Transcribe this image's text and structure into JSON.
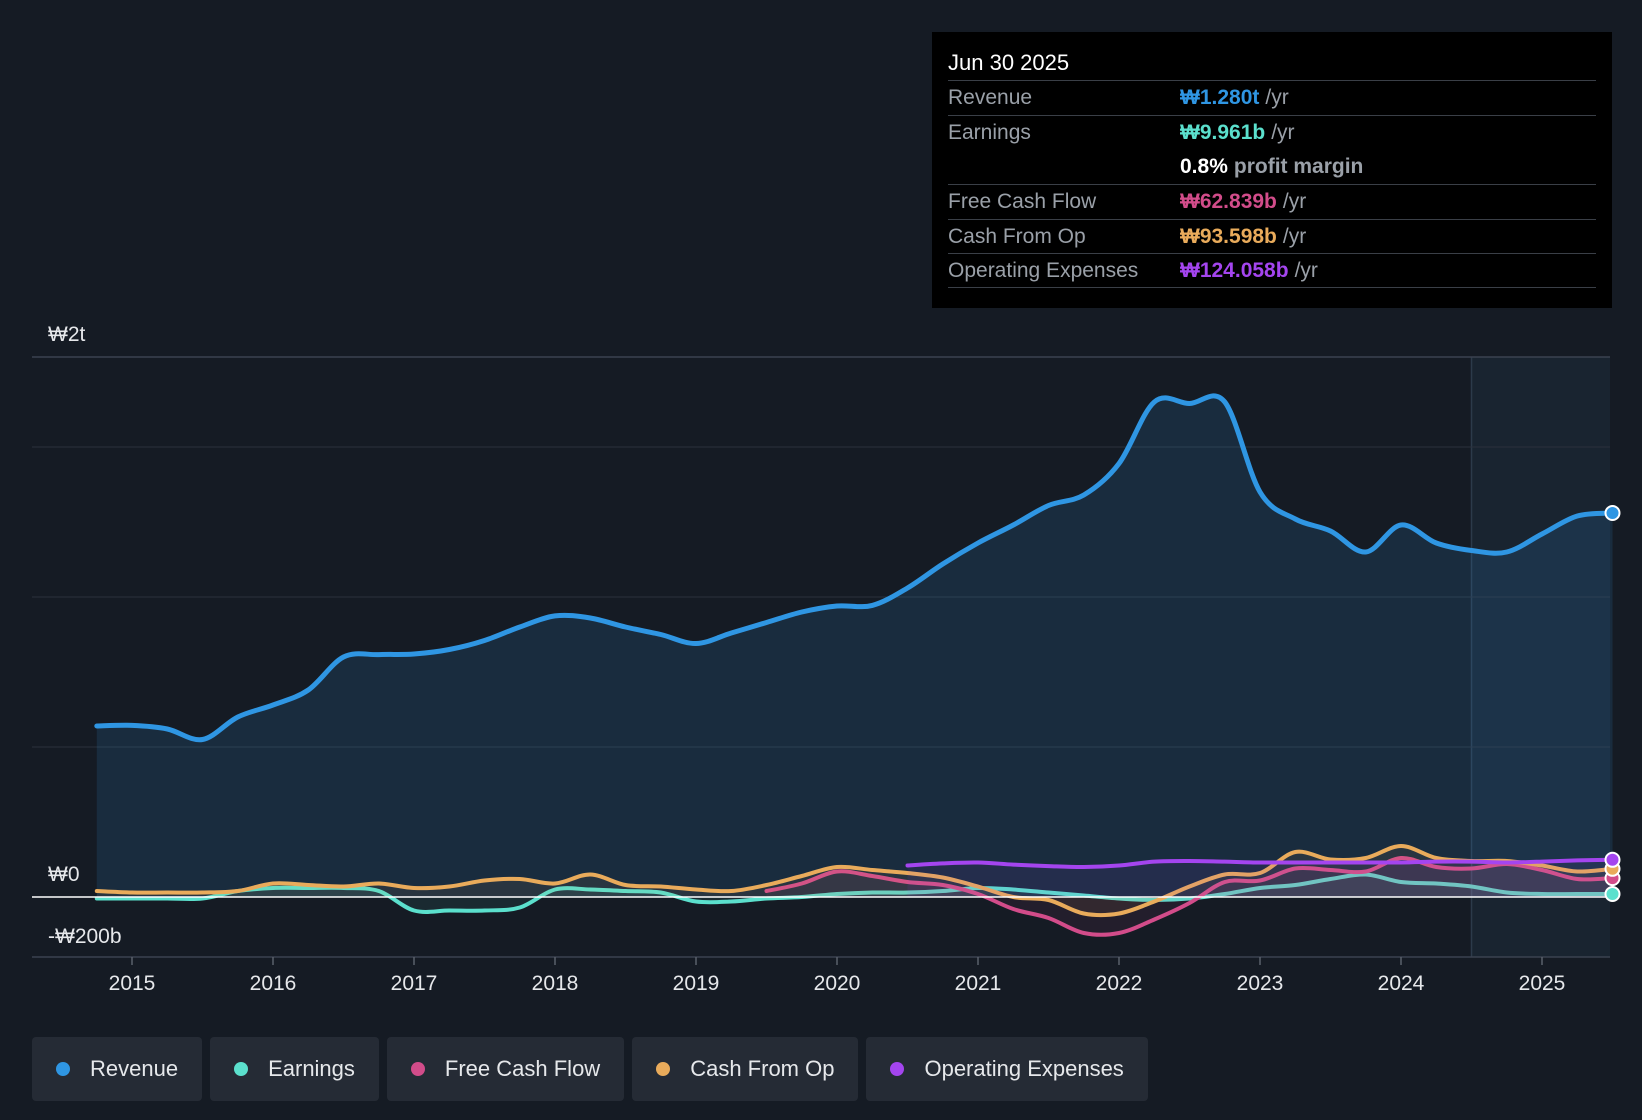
{
  "tooltip": {
    "date": "Jun 30 2025",
    "rows": [
      {
        "label": "Revenue",
        "value": "₩1.280t",
        "unit": "/yr",
        "color": "#2f96e3"
      },
      {
        "label": "Earnings",
        "value": "₩9.961b",
        "unit": "/yr",
        "color": "#5be0cd"
      },
      {
        "label": "Free Cash Flow",
        "value": "₩62.839b",
        "unit": "/yr",
        "color": "#d24c8a"
      },
      {
        "label": "Cash From Op",
        "value": "₩93.598b",
        "unit": "/yr",
        "color": "#e9ab5b"
      },
      {
        "label": "Operating Expenses",
        "value": "₩124.058b",
        "unit": "/yr",
        "color": "#a445ef"
      }
    ],
    "profit_margin_value": "0.8%",
    "profit_margin_label": "profit margin"
  },
  "legend": [
    {
      "label": "Revenue",
      "color": "#2f96e3"
    },
    {
      "label": "Earnings",
      "color": "#5be0cd"
    },
    {
      "label": "Free Cash Flow",
      "color": "#d24c8a"
    },
    {
      "label": "Cash From Op",
      "color": "#e9ab5b"
    },
    {
      "label": "Operating Expenses",
      "color": "#a445ef"
    }
  ],
  "chart_data": {
    "type": "area",
    "title": "",
    "xlabel": "",
    "ylabel": "",
    "ylim": [
      -200,
      1800
    ],
    "xlim": [
      2014.25,
      2025.5
    ],
    "y_tick_labels": [
      {
        "value": 1800,
        "label": "₩2t"
      },
      {
        "value": 0,
        "label": "₩0"
      },
      {
        "value": -200,
        "label": "-₩200b"
      }
    ],
    "gridlines": [
      1500,
      1000,
      500
    ],
    "x_ticks": [
      "2015",
      "2016",
      "2017",
      "2018",
      "2019",
      "2020",
      "2021",
      "2022",
      "2023",
      "2024",
      "2025"
    ],
    "forecast_start": 2024.5,
    "units": "KRW billions",
    "series": [
      {
        "name": "Revenue",
        "color": "#2f96e3",
        "fill": true,
        "end_marker": true,
        "points": [
          [
            2014.75,
            570
          ],
          [
            2015,
            572
          ],
          [
            2015.25,
            560
          ],
          [
            2015.5,
            525
          ],
          [
            2015.75,
            600
          ],
          [
            2016,
            640
          ],
          [
            2016.25,
            690
          ],
          [
            2016.5,
            800
          ],
          [
            2016.75,
            808
          ],
          [
            2017,
            810
          ],
          [
            2017.25,
            825
          ],
          [
            2017.5,
            855
          ],
          [
            2017.75,
            900
          ],
          [
            2018,
            937
          ],
          [
            2018.25,
            930
          ],
          [
            2018.5,
            900
          ],
          [
            2018.75,
            875
          ],
          [
            2019,
            845
          ],
          [
            2019.25,
            880
          ],
          [
            2019.5,
            915
          ],
          [
            2019.75,
            950
          ],
          [
            2020,
            970
          ],
          [
            2020.25,
            972
          ],
          [
            2020.5,
            1030
          ],
          [
            2020.75,
            1110
          ],
          [
            2021,
            1180
          ],
          [
            2021.25,
            1240
          ],
          [
            2021.5,
            1305
          ],
          [
            2021.75,
            1340
          ],
          [
            2022,
            1445
          ],
          [
            2022.25,
            1650
          ],
          [
            2022.5,
            1645
          ],
          [
            2022.75,
            1650
          ],
          [
            2023,
            1350
          ],
          [
            2023.25,
            1260
          ],
          [
            2023.5,
            1220
          ],
          [
            2023.75,
            1150
          ],
          [
            2024,
            1240
          ],
          [
            2024.25,
            1180
          ],
          [
            2024.5,
            1155
          ],
          [
            2024.75,
            1150
          ],
          [
            2025,
            1210
          ],
          [
            2025.25,
            1270
          ],
          [
            2025.5,
            1280
          ]
        ]
      },
      {
        "name": "Earnings",
        "color": "#5be0cd",
        "fill": false,
        "end_marker": true,
        "points": [
          [
            2014.75,
            -5
          ],
          [
            2015,
            -5
          ],
          [
            2015.25,
            -5
          ],
          [
            2015.5,
            -5
          ],
          [
            2015.75,
            20
          ],
          [
            2016,
            30
          ],
          [
            2016.25,
            30
          ],
          [
            2016.5,
            30
          ],
          [
            2016.75,
            20
          ],
          [
            2017,
            -45
          ],
          [
            2017.25,
            -45
          ],
          [
            2017.5,
            -45
          ],
          [
            2017.75,
            -35
          ],
          [
            2018,
            25
          ],
          [
            2018.25,
            25
          ],
          [
            2018.5,
            20
          ],
          [
            2018.75,
            15
          ],
          [
            2019,
            -15
          ],
          [
            2019.25,
            -15
          ],
          [
            2019.5,
            -5
          ],
          [
            2019.75,
            0
          ],
          [
            2020,
            10
          ],
          [
            2020.25,
            15
          ],
          [
            2020.5,
            15
          ],
          [
            2020.75,
            20
          ],
          [
            2021,
            30
          ],
          [
            2021.25,
            25
          ],
          [
            2021.5,
            15
          ],
          [
            2021.75,
            5
          ],
          [
            2022,
            -5
          ],
          [
            2022.25,
            -10
          ],
          [
            2022.5,
            -5
          ],
          [
            2022.75,
            10
          ],
          [
            2023,
            30
          ],
          [
            2023.25,
            40
          ],
          [
            2023.5,
            60
          ],
          [
            2023.75,
            75
          ],
          [
            2024,
            50
          ],
          [
            2024.25,
            45
          ],
          [
            2024.5,
            35
          ],
          [
            2024.75,
            15
          ],
          [
            2025,
            10
          ],
          [
            2025.25,
            10
          ],
          [
            2025.5,
            10
          ]
        ]
      },
      {
        "name": "Free Cash Flow",
        "color": "#d24c8a",
        "fill": false,
        "end_marker": true,
        "points": [
          [
            2019.5,
            20
          ],
          [
            2019.75,
            45
          ],
          [
            2020,
            85
          ],
          [
            2020.25,
            70
          ],
          [
            2020.5,
            50
          ],
          [
            2020.75,
            40
          ],
          [
            2021,
            10
          ],
          [
            2021.25,
            -40
          ],
          [
            2021.5,
            -70
          ],
          [
            2021.75,
            -120
          ],
          [
            2022,
            -120
          ],
          [
            2022.25,
            -75
          ],
          [
            2022.5,
            -20
          ],
          [
            2022.75,
            50
          ],
          [
            2023,
            55
          ],
          [
            2023.25,
            95
          ],
          [
            2023.5,
            90
          ],
          [
            2023.75,
            85
          ],
          [
            2024,
            130
          ],
          [
            2024.25,
            100
          ],
          [
            2024.5,
            95
          ],
          [
            2024.75,
            110
          ],
          [
            2025,
            90
          ],
          [
            2025.25,
            60
          ],
          [
            2025.5,
            63
          ]
        ]
      },
      {
        "name": "Cash From Op",
        "color": "#e9ab5b",
        "fill": false,
        "end_marker": true,
        "points": [
          [
            2014.75,
            20
          ],
          [
            2015,
            15
          ],
          [
            2015.25,
            15
          ],
          [
            2015.5,
            15
          ],
          [
            2015.75,
            20
          ],
          [
            2016,
            45
          ],
          [
            2016.25,
            40
          ],
          [
            2016.5,
            35
          ],
          [
            2016.75,
            45
          ],
          [
            2017,
            30
          ],
          [
            2017.25,
            35
          ],
          [
            2017.5,
            55
          ],
          [
            2017.75,
            60
          ],
          [
            2018,
            45
          ],
          [
            2018.25,
            75
          ],
          [
            2018.5,
            40
          ],
          [
            2018.75,
            35
          ],
          [
            2019,
            25
          ],
          [
            2019.25,
            20
          ],
          [
            2019.5,
            40
          ],
          [
            2019.75,
            70
          ],
          [
            2020,
            100
          ],
          [
            2020.25,
            90
          ],
          [
            2020.5,
            80
          ],
          [
            2020.75,
            65
          ],
          [
            2021,
            35
          ],
          [
            2021.25,
            0
          ],
          [
            2021.5,
            -10
          ],
          [
            2021.75,
            -55
          ],
          [
            2022,
            -55
          ],
          [
            2022.25,
            -15
          ],
          [
            2022.5,
            35
          ],
          [
            2022.75,
            75
          ],
          [
            2023,
            80
          ],
          [
            2023.25,
            150
          ],
          [
            2023.5,
            125
          ],
          [
            2023.75,
            130
          ],
          [
            2024,
            170
          ],
          [
            2024.25,
            130
          ],
          [
            2024.5,
            120
          ],
          [
            2024.75,
            120
          ],
          [
            2025,
            105
          ],
          [
            2025.25,
            85
          ],
          [
            2025.5,
            94
          ]
        ]
      },
      {
        "name": "Operating Expenses",
        "color": "#a445ef",
        "fill": false,
        "end_marker": true,
        "points": [
          [
            2020.5,
            105
          ],
          [
            2020.75,
            112
          ],
          [
            2021,
            115
          ],
          [
            2021.25,
            108
          ],
          [
            2021.5,
            103
          ],
          [
            2021.75,
            100
          ],
          [
            2022,
            105
          ],
          [
            2022.25,
            118
          ],
          [
            2022.5,
            120
          ],
          [
            2022.75,
            118
          ],
          [
            2023,
            115
          ],
          [
            2023.25,
            115
          ],
          [
            2023.5,
            115
          ],
          [
            2023.75,
            115
          ],
          [
            2024,
            115
          ],
          [
            2024.25,
            118
          ],
          [
            2024.5,
            118
          ],
          [
            2024.75,
            115
          ],
          [
            2025,
            118
          ],
          [
            2025.25,
            122
          ],
          [
            2025.5,
            124
          ]
        ]
      }
    ]
  }
}
